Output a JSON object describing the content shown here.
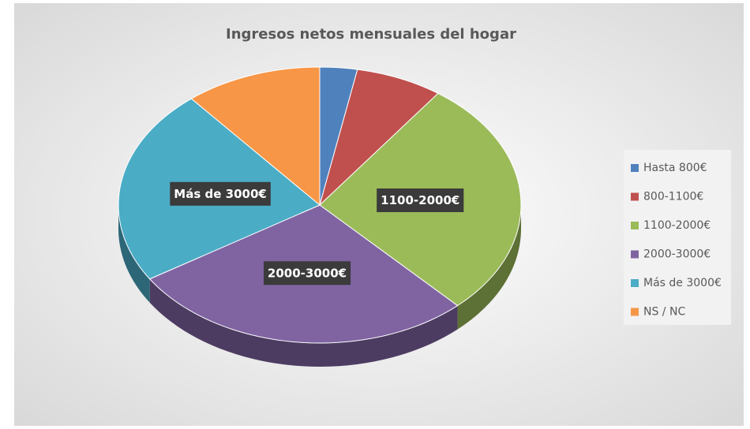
{
  "chart_data": {
    "type": "pie3d",
    "title": "Ingresos netos mensuales del hogar",
    "categories": [
      "Hasta 800€",
      "800-1100€",
      "1100-2000€",
      "2000-3000€",
      "Más de 3000€",
      "NS / NC"
    ],
    "values": [
      3,
      7,
      28,
      28,
      23,
      11
    ],
    "value_labels": [
      null,
      null,
      "1100-2000€",
      "2000-3000€",
      "Más de 3000€",
      null
    ],
    "colors": [
      "#4f81bd",
      "#c0504d",
      "#9bbb59",
      "#8064a2",
      "#4bacc6",
      "#f79646"
    ],
    "legend": "right"
  }
}
